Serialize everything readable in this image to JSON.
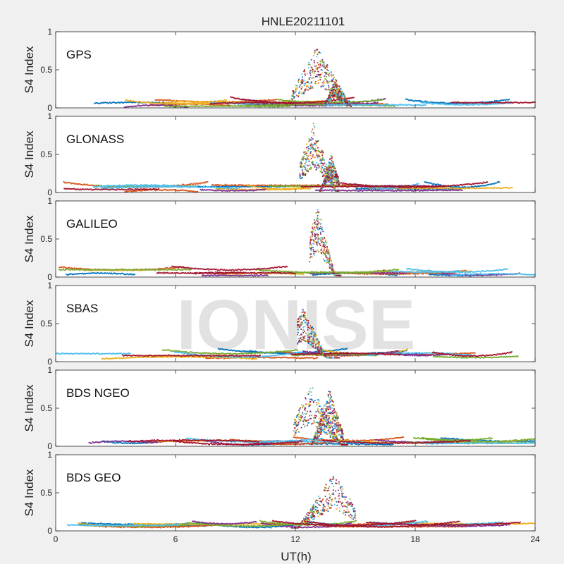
{
  "figure": {
    "title": "HNLE20211101",
    "watermark": "IONISE"
  },
  "colors": {
    "series": [
      "#0072BD",
      "#D95319",
      "#EDB120",
      "#7E2F8E",
      "#77AC30",
      "#4DBEEE",
      "#A2142F"
    ],
    "axes_background": "#ffffff",
    "figure_background": "#f0f0f0"
  },
  "chart_data": [
    {
      "type": "scatter",
      "title": "GPS",
      "ylabel": "S4 Index",
      "xlabel": "",
      "xlim": [
        0,
        24
      ],
      "ylim": [
        0,
        1
      ],
      "xticks": [
        0,
        6,
        12,
        18,
        24
      ],
      "yticks": [
        0,
        0.5,
        1
      ],
      "grid": false,
      "background_level": [
        0.02,
        0.12
      ],
      "events": [
        {
          "t_start": 11.8,
          "t_end": 14.8,
          "peak": 0.82,
          "peak_time": 13.1
        },
        {
          "t_start": 13.5,
          "t_end": 14.6,
          "peak": 0.35,
          "peak_time": 14.0
        }
      ]
    },
    {
      "type": "scatter",
      "title": "GLONASS",
      "ylabel": "S4 Index",
      "xlabel": "",
      "xlim": [
        0,
        24
      ],
      "ylim": [
        0,
        1
      ],
      "xticks": [
        0,
        6,
        12,
        18,
        24
      ],
      "yticks": [
        0,
        0.5,
        1
      ],
      "grid": false,
      "background_level": [
        0.02,
        0.15
      ],
      "events": [
        {
          "t_start": 12.2,
          "t_end": 14.2,
          "peak": 0.92,
          "peak_time": 12.9
        },
        {
          "t_start": 13.2,
          "t_end": 14.2,
          "peak": 0.5,
          "peak_time": 13.8
        }
      ]
    },
    {
      "type": "scatter",
      "title": "GALILEO",
      "ylabel": "S4 Index",
      "xlabel": "",
      "xlim": [
        0,
        24
      ],
      "ylim": [
        0,
        1
      ],
      "xticks": [
        0,
        6,
        12,
        18,
        24
      ],
      "yticks": [
        0,
        0.5,
        1
      ],
      "grid": false,
      "background_level": [
        0.02,
        0.15
      ],
      "events": [
        {
          "t_start": 12.7,
          "t_end": 14.3,
          "peak": 0.95,
          "peak_time": 13.1
        }
      ]
    },
    {
      "type": "scatter",
      "title": "SBAS",
      "ylabel": "S4 Index",
      "xlabel": "",
      "xlim": [
        0,
        24
      ],
      "ylim": [
        0,
        1
      ],
      "xticks": [
        0,
        6,
        12,
        18,
        24
      ],
      "yticks": [
        0,
        0.5,
        1
      ],
      "grid": false,
      "background_level": [
        0.05,
        0.18
      ],
      "events": [
        {
          "t_start": 12.1,
          "t_end": 14.2,
          "peak": 0.72,
          "peak_time": 12.4
        }
      ]
    },
    {
      "type": "scatter",
      "title": "BDS NGEO",
      "ylabel": "S4 Index",
      "xlabel": "",
      "xlim": [
        0,
        24
      ],
      "ylim": [
        0,
        1
      ],
      "xticks": [
        0,
        6,
        12,
        18,
        24
      ],
      "yticks": [
        0,
        0.5,
        1
      ],
      "grid": false,
      "background_level": [
        0.02,
        0.12
      ],
      "events": [
        {
          "t_start": 11.9,
          "t_end": 14.6,
          "peak": 0.8,
          "peak_time": 12.8
        },
        {
          "t_start": 12.8,
          "t_end": 14.4,
          "peak": 0.75,
          "peak_time": 13.7
        }
      ]
    },
    {
      "type": "scatter",
      "title": "BDS GEO",
      "ylabel": "S4 Index",
      "xlabel": "UT(h)",
      "xlim": [
        0,
        24
      ],
      "ylim": [
        0,
        1
      ],
      "xticks": [
        0,
        6,
        12,
        18,
        24
      ],
      "yticks": [
        0,
        0.5,
        1
      ],
      "grid": false,
      "background_level": [
        0.04,
        0.13
      ],
      "events": [
        {
          "t_start": 11.8,
          "t_end": 15.0,
          "peak": 0.76,
          "peak_time": 13.9
        }
      ]
    }
  ]
}
